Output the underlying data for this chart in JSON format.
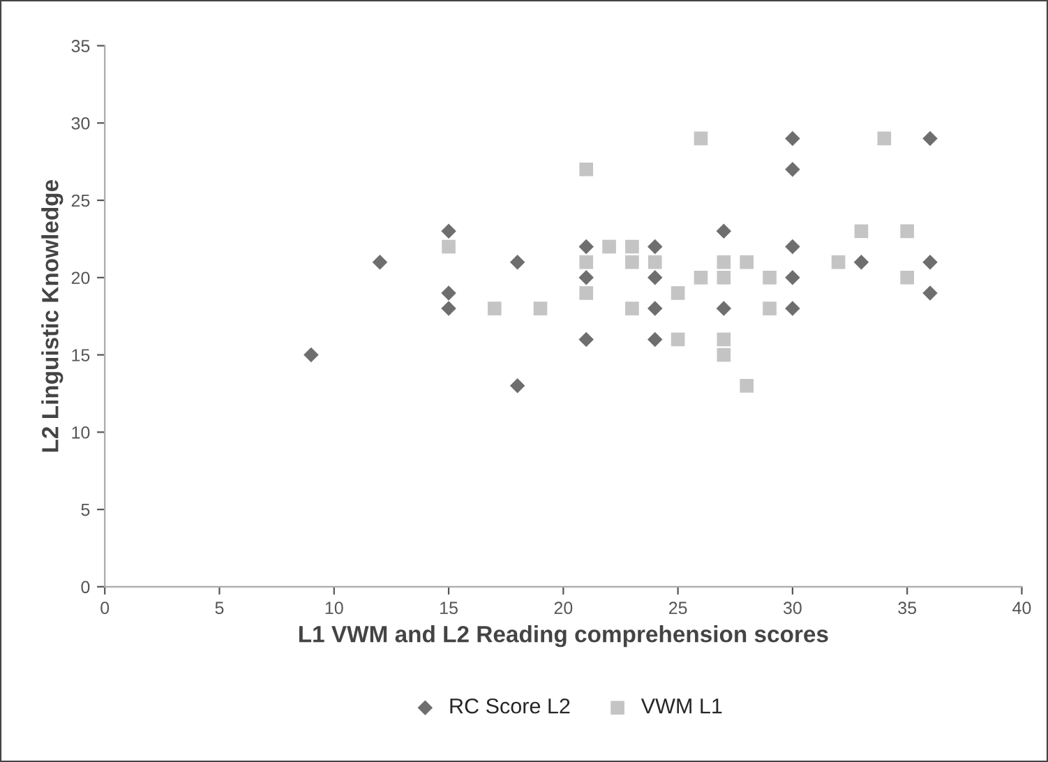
{
  "chart_data": {
    "type": "scatter",
    "xlabel": "L1 VWM and L2 Reading comprehension scores",
    "ylabel": "L2 Linguistic Knowledge",
    "xlim": [
      0,
      40
    ],
    "xticks": [
      0,
      5,
      10,
      15,
      20,
      25,
      30,
      35,
      40
    ],
    "ylim": [
      0,
      35
    ],
    "yticks": [
      0,
      5,
      10,
      15,
      20,
      25,
      30,
      35
    ],
    "grid": false,
    "legend": "bottom",
    "series": [
      {
        "name": "RC Score L2",
        "color": "#6e6e6e",
        "marker": "diamond",
        "x": [
          9,
          12,
          15,
          15,
          15,
          18,
          18,
          21,
          21,
          21,
          24,
          24,
          24,
          24,
          27,
          27,
          30,
          30,
          30,
          30,
          30,
          33,
          36,
          36,
          36
        ],
        "values": [
          15,
          21,
          23,
          19,
          18,
          21,
          13,
          22,
          20,
          16,
          22,
          20,
          18,
          16,
          23,
          18,
          29,
          27,
          22,
          20,
          18,
          21,
          29,
          21,
          19
        ]
      },
      {
        "name": "VWM L1",
        "color": "#c4c4c4",
        "marker": "square",
        "x": [
          15,
          17,
          19,
          21,
          21,
          21,
          22,
          23,
          23,
          23,
          24,
          25,
          25,
          26,
          26,
          27,
          27,
          27,
          27,
          28,
          28,
          29,
          29,
          32,
          33,
          34,
          35,
          35
        ],
        "values": [
          22,
          18,
          18,
          27,
          21,
          19,
          22,
          22,
          21,
          18,
          21,
          19,
          16,
          29,
          20,
          21,
          20,
          16,
          15,
          21,
          13,
          20,
          18,
          21,
          23,
          29,
          23,
          20
        ]
      }
    ]
  }
}
